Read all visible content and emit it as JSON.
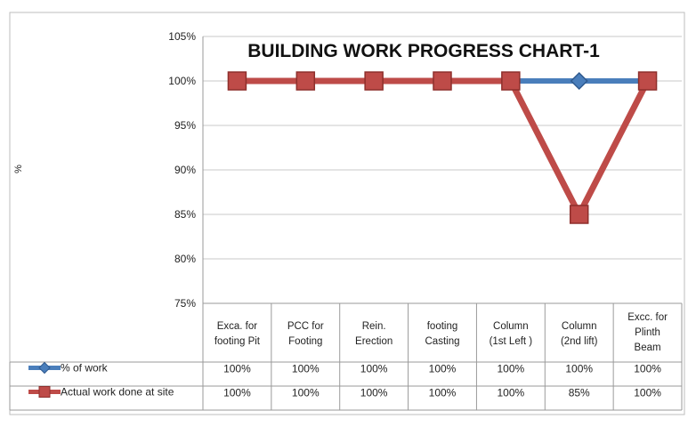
{
  "chart_data": {
    "type": "line",
    "title": "BUILDING WORK PROGRESS CHART-1",
    "ylabel": "%",
    "xlabel": "",
    "ylim": [
      75,
      105
    ],
    "yticks": [
      "75%",
      "80%",
      "85%",
      "90%",
      "95%",
      "100%",
      "105%"
    ],
    "grid": "horizontal",
    "legend": "data-table",
    "categories": [
      [
        "Exca. for",
        "footing Pit"
      ],
      [
        "PCC for",
        "Footing"
      ],
      [
        "Rein.",
        "Erection"
      ],
      [
        "footing",
        "Casting"
      ],
      [
        "Column",
        "(1st Left )"
      ],
      [
        "Column",
        "(2nd lift)"
      ],
      [
        "Excc. for",
        "Plinth",
        "Beam"
      ]
    ],
    "series": [
      {
        "name": "% of work",
        "color": "#4a7ebb",
        "marker": "diamond",
        "values": [
          100,
          100,
          100,
          100,
          100,
          100,
          100
        ],
        "labels": [
          "100%",
          "100%",
          "100%",
          "100%",
          "100%",
          "100%",
          "100%"
        ]
      },
      {
        "name": "Actual work done at site",
        "color": "#be4b48",
        "marker": "square",
        "values": [
          100,
          100,
          100,
          100,
          100,
          85,
          100
        ],
        "labels": [
          "100%",
          "100%",
          "100%",
          "100%",
          "100%",
          "85%",
          "100%"
        ]
      }
    ]
  }
}
